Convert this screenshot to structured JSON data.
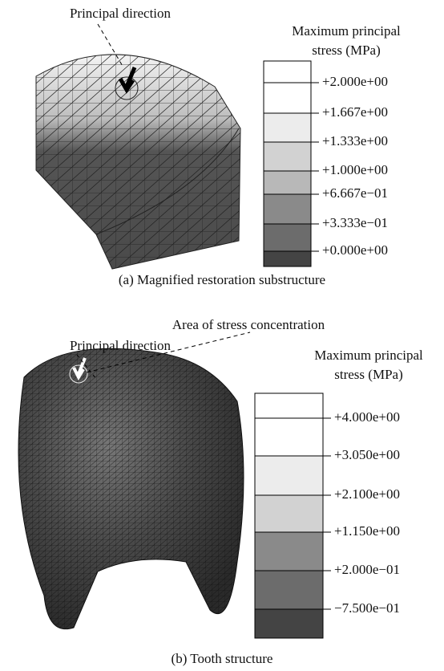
{
  "panels": [
    {
      "annotations": [
        "Principal direction"
      ],
      "legend": {
        "title": [
          "Maximum principal",
          "stress (MPa)"
        ],
        "labels": [
          "+2.000e+00",
          "+1.667e+00",
          "+1.333e+00",
          "+1.000e+00",
          "+6.667e−01",
          "+3.333e−01",
          "+0.000e+00"
        ]
      },
      "caption": "(a)  Magnified restoration substructure"
    },
    {
      "annotations": [
        "Area of stress concentration",
        "Principal direction"
      ],
      "legend": {
        "title": [
          "Maximum principal",
          "stress (MPa)"
        ],
        "labels": [
          "+4.000e+00",
          "+3.050e+00",
          "+2.100e+00",
          "+1.150e+00",
          "+2.000e−01",
          "−7.500e−01"
        ]
      },
      "caption": "(b)  Tooth structure"
    }
  ]
}
